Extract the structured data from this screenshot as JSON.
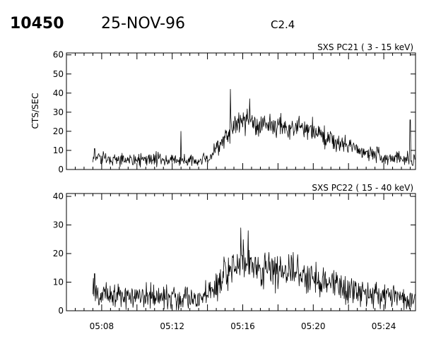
{
  "header": {
    "event_number": "10450",
    "date": "25-NOV-96",
    "flare_class": "C2.4"
  },
  "chart_data": [
    {
      "type": "line",
      "title": "SXS PC21  (  3 - 15 keV)",
      "ylabel": "CTS/SEC",
      "xlabel": "",
      "xlim": [
        "05:06",
        "05:25.8"
      ],
      "ylim": [
        0,
        61
      ],
      "yticks": [
        0,
        10,
        20,
        30,
        40,
        50,
        60
      ],
      "xticks": [
        "05:08",
        "05:12",
        "05:16",
        "05:20",
        "05:24"
      ],
      "show_x_tick_labels": false,
      "grid": false,
      "series": [
        {
          "data_start": "05:07.5",
          "noise": 2.2,
          "profile_minutes": [
            "05:07.5",
            "05:10",
            "05:12",
            "05:13.5",
            "05:14.2",
            "05:15",
            "05:15.5",
            "05:16",
            "05:17",
            "05:18",
            "05:19",
            "05:20",
            "05:21",
            "05:22",
            "05:23",
            "05:24",
            "05:25.8"
          ],
          "profile_counts": [
            6,
            5,
            5,
            4,
            7,
            17,
            23,
            26,
            24,
            22,
            22,
            20,
            15,
            12,
            9,
            7,
            5
          ],
          "notable_peaks": [
            {
              "time": "05:07.6",
              "value": 11
            },
            {
              "time": "05:12.5",
              "value": 20
            },
            {
              "time": "05:15.3",
              "value": 42
            },
            {
              "time": "05:16.4",
              "value": 37
            },
            {
              "time": "05:25.5",
              "value": 26
            }
          ]
        }
      ]
    },
    {
      "type": "line",
      "title": "SXS PC22  ( 15 - 40 keV)",
      "ylabel": "",
      "xlabel": "",
      "xlim": [
        "05:06",
        "05:25.8"
      ],
      "ylim": [
        0,
        41
      ],
      "yticks": [
        0,
        10,
        20,
        30,
        40
      ],
      "xticks": [
        "05:08",
        "05:12",
        "05:16",
        "05:20",
        "05:24"
      ],
      "show_x_tick_labels": true,
      "grid": false,
      "series": [
        {
          "data_start": "05:07.5",
          "noise": 2.8,
          "profile_minutes": [
            "05:07.5",
            "05:10",
            "05:12",
            "05:13.5",
            "05:14.3",
            "05:15",
            "05:15.5",
            "05:16",
            "05:17",
            "05:18",
            "05:19",
            "05:20",
            "05:21",
            "05:22",
            "05:23",
            "05:24",
            "05:25.8"
          ],
          "profile_counts": [
            6,
            5,
            5,
            4,
            7,
            13,
            16,
            18,
            15,
            13,
            13,
            12,
            10,
            8,
            6,
            5,
            4
          ],
          "notable_peaks": [
            {
              "time": "05:07.6",
              "value": 13
            },
            {
              "time": "05:15.9",
              "value": 29
            },
            {
              "time": "05:16.3",
              "value": 28
            }
          ]
        }
      ]
    }
  ]
}
